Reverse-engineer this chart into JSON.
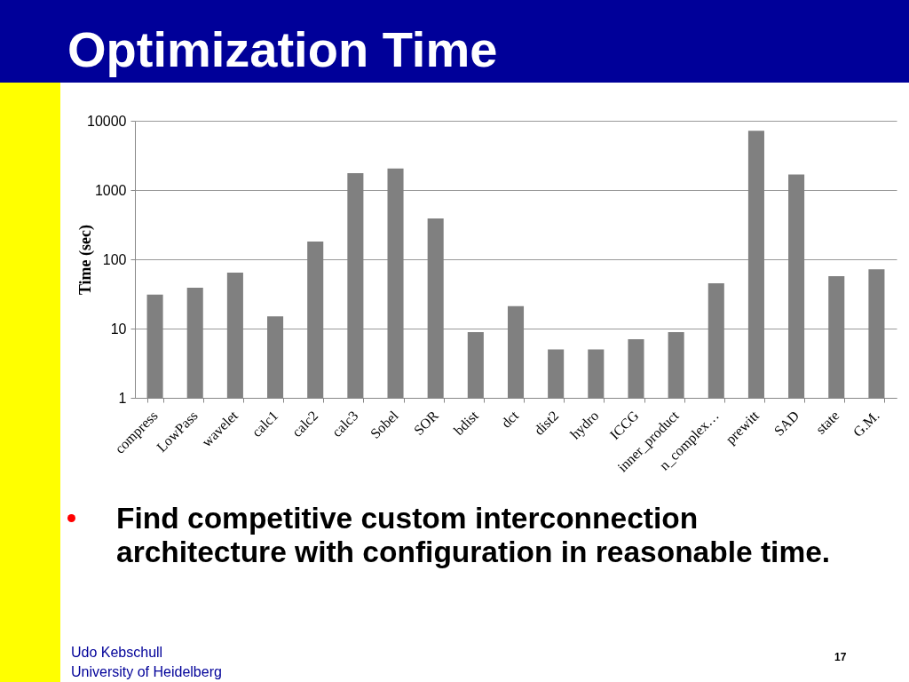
{
  "chart_data": {
    "type": "bar",
    "title": "Optimization Time",
    "ylabel": "Time (sec)",
    "categories": [
      "compress",
      "LowPass",
      "wavelet",
      "calc1",
      "calc2",
      "calc3",
      "Sobel",
      "SOR",
      "bdist",
      "dct",
      "dist2",
      "hydro",
      "ICCG",
      "inner_product",
      "n_complex…",
      "prewitt",
      "SAD",
      "state",
      "G.M."
    ],
    "values": [
      31,
      39,
      64,
      15,
      180,
      1750,
      2050,
      390,
      8.9,
      21,
      5,
      5,
      7,
      8.9,
      45,
      7200,
      1680,
      57,
      72
    ],
    "color": "#808080",
    "ylim": [
      1,
      10000
    ],
    "yticks": [
      1,
      10,
      100,
      1000,
      10000
    ],
    "log": true,
    "grid": "y",
    "annotations": [
      "Find competitive custom interconnection architecture with configuration in reasonable time.",
      "Udo Kebschull",
      "University of Heidelberg",
      "17"
    ]
  }
}
